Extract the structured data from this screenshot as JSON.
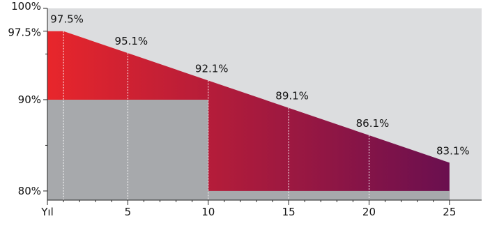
{
  "chart_data": {
    "type": "area",
    "x_axis": {
      "range": [
        0,
        27
      ],
      "ticks": [
        {
          "value": 0,
          "label": "Yıl"
        },
        {
          "value": 5,
          "label": "5"
        },
        {
          "value": 10,
          "label": "10"
        },
        {
          "value": 15,
          "label": "15"
        },
        {
          "value": 20,
          "label": "20"
        },
        {
          "value": 25,
          "label": "25"
        }
      ],
      "minor_ticks": [
        1,
        2,
        3,
        4,
        6,
        7,
        8,
        9,
        11,
        12,
        13,
        14,
        16,
        17,
        18,
        19,
        21,
        22,
        23,
        24
      ]
    },
    "y_axis": {
      "range": [
        79,
        100
      ],
      "ticks": [
        {
          "value": 100,
          "label": "100%"
        },
        {
          "value": 97.5,
          "label": "97.5%"
        },
        {
          "value": 90,
          "label": "90%"
        },
        {
          "value": 80,
          "label": "80%"
        }
      ],
      "minor_ticks": [
        95,
        85
      ]
    },
    "series": [
      {
        "type": "line-area",
        "points": [
          {
            "x": 0,
            "y": 97.5
          },
          {
            "x": 1,
            "y": 97.5
          },
          {
            "x": 5,
            "y": 95.1
          },
          {
            "x": 10,
            "y": 92.1
          },
          {
            "x": 15,
            "y": 89.1
          },
          {
            "x": 20,
            "y": 86.1
          },
          {
            "x": 25,
            "y": 83.1
          }
        ],
        "gradient": [
          "#e8262b",
          "#6a0f4f"
        ]
      },
      {
        "type": "step-area",
        "points": [
          {
            "x": 0,
            "y": 90
          },
          {
            "x": 10,
            "y": 90
          },
          {
            "x": 10,
            "y": 80
          },
          {
            "x": 25,
            "y": 80
          }
        ],
        "color": "#a7a9ac"
      }
    ],
    "value_labels": [
      {
        "x": 1,
        "y": 97.5,
        "label": "97.5%"
      },
      {
        "x": 5,
        "y": 95.1,
        "label": "95.1%"
      },
      {
        "x": 10,
        "y": 92.1,
        "label": "92.1%"
      },
      {
        "x": 15,
        "y": 89.1,
        "label": "89.1%"
      },
      {
        "x": 20,
        "y": 86.1,
        "label": "86.1%"
      },
      {
        "x": 25,
        "y": 83.1,
        "label": "83.1%"
      }
    ],
    "dotted_lines_x": [
      1,
      5,
      10,
      15,
      20
    ],
    "background_color": "#dcdddf"
  }
}
